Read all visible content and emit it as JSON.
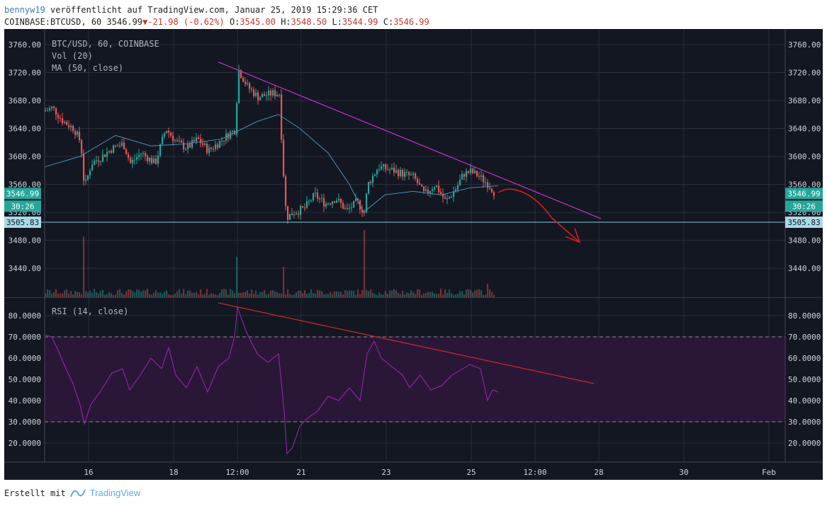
{
  "header": {
    "author": "bennyw19",
    "published": "veröffentlicht auf TradingView.com, Januar 25, 2019 15:29:36 CET",
    "symbol": "COINBASE:BTCUSD, 60",
    "last": "3546.99",
    "change": "-21.98 (-0.62%)",
    "o_label": "O:",
    "o_value": "3545.00",
    "h_label": "H:",
    "h_value": "3548.50",
    "l_label": "L:",
    "l_value": "3544.99",
    "c_label": "C:",
    "c_value": "3546.99"
  },
  "legend": {
    "main": "BTC/USD, 60, COINBASE",
    "vol": "Vol (20)",
    "ma": "MA (50, close)",
    "rsi": "RSI (14, close)"
  },
  "colors": {
    "background": "#131722",
    "grid": "#2a2e39",
    "up": "#26a69a",
    "down": "#ef5350",
    "ma": "#4a90b8",
    "trendline": "#c832c8",
    "rsi": "#9c27b0",
    "rsi_band": "#2a1738",
    "rsi_trend": "#d02828",
    "arrow": "#e01e1e",
    "support": "#7fc8d8"
  },
  "footer": {
    "created_with": "Erstellt mit",
    "brand": "TradingView"
  },
  "chart_data": [
    {
      "type": "candlestick",
      "title": "BTC/USD, 60, COINBASE",
      "ylim": [
        3400,
        3770
      ],
      "y_ticks": [
        3440,
        3480,
        3520,
        3560,
        3600,
        3640,
        3680,
        3720,
        3760
      ],
      "x_ticks": [
        "16",
        "18",
        "12:00",
        "21",
        "23",
        "25",
        "12:00",
        "28",
        "30",
        "Feb"
      ],
      "price_labels": {
        "last": "3546.99",
        "countdown": "30:26",
        "support": "3505.83"
      },
      "approx_close_path": [
        [
          0,
          3665
        ],
        [
          10,
          3670
        ],
        [
          25,
          3650
        ],
        [
          40,
          3640
        ],
        [
          50,
          3620
        ],
        [
          55,
          3555
        ],
        [
          65,
          3590
        ],
        [
          80,
          3600
        ],
        [
          95,
          3612
        ],
        [
          110,
          3618
        ],
        [
          120,
          3590
        ],
        [
          135,
          3605
        ],
        [
          155,
          3590
        ],
        [
          170,
          3640
        ],
        [
          185,
          3620
        ],
        [
          200,
          3612
        ],
        [
          215,
          3625
        ],
        [
          230,
          3608
        ],
        [
          245,
          3620
        ],
        [
          260,
          3633
        ],
        [
          268,
          3638
        ],
        [
          272,
          3725
        ],
        [
          285,
          3700
        ],
        [
          300,
          3685
        ],
        [
          320,
          3690
        ],
        [
          330,
          3690
        ],
        [
          335,
          3590
        ],
        [
          340,
          3512
        ],
        [
          350,
          3520
        ],
        [
          365,
          3525
        ],
        [
          380,
          3545
        ],
        [
          395,
          3532
        ],
        [
          410,
          3540
        ],
        [
          425,
          3522
        ],
        [
          440,
          3535
        ],
        [
          450,
          3520
        ],
        [
          455,
          3560
        ],
        [
          470,
          3585
        ],
        [
          490,
          3580
        ],
        [
          505,
          3575
        ],
        [
          520,
          3570
        ],
        [
          535,
          3545
        ],
        [
          550,
          3560
        ],
        [
          565,
          3535
        ],
        [
          580,
          3555
        ],
        [
          590,
          3575
        ],
        [
          600,
          3578
        ],
        [
          610,
          3573
        ],
        [
          625,
          3560
        ],
        [
          635,
          3546.99
        ]
      ],
      "volume_spikes": [
        [
          55,
          0.9
        ],
        [
          270,
          0.6
        ],
        [
          335,
          0.45
        ],
        [
          450,
          1.0
        ],
        [
          625,
          0.2
        ]
      ],
      "ma_path": [
        [
          0,
          3585
        ],
        [
          50,
          3600
        ],
        [
          100,
          3630
        ],
        [
          150,
          3615
        ],
        [
          200,
          3618
        ],
        [
          250,
          3625
        ],
        [
          300,
          3650
        ],
        [
          330,
          3660
        ],
        [
          360,
          3640
        ],
        [
          400,
          3605
        ],
        [
          430,
          3560
        ],
        [
          450,
          3520
        ],
        [
          480,
          3545
        ],
        [
          520,
          3550
        ],
        [
          560,
          3545
        ],
        [
          600,
          3555
        ],
        [
          640,
          3558
        ]
      ],
      "trendline": [
        [
          245,
          3735
        ],
        [
          785,
          3511
        ]
      ],
      "support_level": 3505.83
    },
    {
      "type": "line",
      "title": "RSI (14, close)",
      "ylim": [
        10,
        87
      ],
      "y_ticks": [
        "20.0000",
        "30.0000",
        "40.0000",
        "50.0000",
        "60.0000",
        "70.0000",
        "80.0000"
      ],
      "bands": [
        30,
        70
      ],
      "rsi_path": [
        [
          0,
          71
        ],
        [
          10,
          70
        ],
        [
          20,
          63
        ],
        [
          30,
          55
        ],
        [
          40,
          48
        ],
        [
          50,
          38
        ],
        [
          56,
          29
        ],
        [
          65,
          38
        ],
        [
          80,
          45
        ],
        [
          95,
          53
        ],
        [
          110,
          55
        ],
        [
          120,
          45
        ],
        [
          135,
          52
        ],
        [
          150,
          60
        ],
        [
          165,
          55
        ],
        [
          175,
          65
        ],
        [
          185,
          52
        ],
        [
          200,
          46
        ],
        [
          215,
          56
        ],
        [
          230,
          44
        ],
        [
          245,
          56
        ],
        [
          260,
          60
        ],
        [
          268,
          70
        ],
        [
          272,
          84
        ],
        [
          285,
          72
        ],
        [
          300,
          62
        ],
        [
          315,
          58
        ],
        [
          330,
          62
        ],
        [
          338,
          35
        ],
        [
          342,
          15
        ],
        [
          350,
          18
        ],
        [
          360,
          28
        ],
        [
          372,
          32
        ],
        [
          385,
          35
        ],
        [
          400,
          42
        ],
        [
          415,
          40
        ],
        [
          430,
          46
        ],
        [
          445,
          40
        ],
        [
          455,
          62
        ],
        [
          465,
          68
        ],
        [
          475,
          60
        ],
        [
          490,
          56
        ],
        [
          505,
          52
        ],
        [
          515,
          46
        ],
        [
          530,
          52
        ],
        [
          545,
          45
        ],
        [
          560,
          47
        ],
        [
          575,
          52
        ],
        [
          590,
          55
        ],
        [
          600,
          57
        ],
        [
          615,
          55
        ],
        [
          625,
          40
        ],
        [
          632,
          45
        ],
        [
          640,
          44
        ]
      ],
      "trendline": [
        [
          245,
          86
        ],
        [
          775,
          48
        ]
      ]
    }
  ]
}
